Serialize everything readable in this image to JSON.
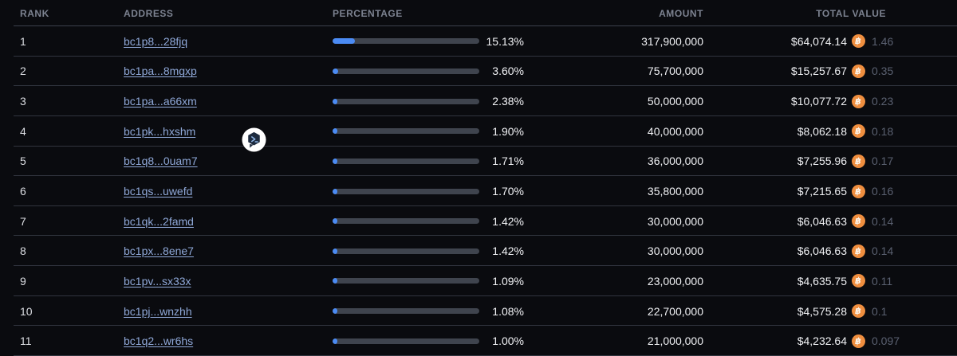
{
  "table": {
    "headers": {
      "rank": "RANK",
      "address": "ADDRESS",
      "percentage": "PERCENTAGE",
      "amount": "AMOUNT",
      "total_value": "TOTAL VALUE"
    },
    "rows": [
      {
        "rank": "1",
        "address": "bc1p8...28fjq",
        "percentage": "15.13%",
        "percentage_value": 15.13,
        "amount": "317,900,000",
        "usd": "$64,074.14",
        "btc": "1.46"
      },
      {
        "rank": "2",
        "address": "bc1pa...8mgxp",
        "percentage": "3.60%",
        "percentage_value": 3.6,
        "amount": "75,700,000",
        "usd": "$15,257.67",
        "btc": "0.35"
      },
      {
        "rank": "3",
        "address": "bc1pa...a66xm",
        "percentage": "2.38%",
        "percentage_value": 2.38,
        "amount": "50,000,000",
        "usd": "$10,077.72",
        "btc": "0.23"
      },
      {
        "rank": "4",
        "address": "bc1pk...hxshm",
        "percentage": "1.90%",
        "percentage_value": 1.9,
        "amount": "40,000,000",
        "usd": "$8,062.18",
        "btc": "0.18"
      },
      {
        "rank": "5",
        "address": "bc1q8...0uam7",
        "percentage": "1.71%",
        "percentage_value": 1.71,
        "amount": "36,000,000",
        "usd": "$7,255.96",
        "btc": "0.17"
      },
      {
        "rank": "6",
        "address": "bc1qs...uwefd",
        "percentage": "1.70%",
        "percentage_value": 1.7,
        "amount": "35,800,000",
        "usd": "$7,215.65",
        "btc": "0.16"
      },
      {
        "rank": "7",
        "address": "bc1qk...2famd",
        "percentage": "1.42%",
        "percentage_value": 1.42,
        "amount": "30,000,000",
        "usd": "$6,046.63",
        "btc": "0.14"
      },
      {
        "rank": "8",
        "address": "bc1px...8ene7",
        "percentage": "1.42%",
        "percentage_value": 1.42,
        "amount": "30,000,000",
        "usd": "$6,046.63",
        "btc": "0.14"
      },
      {
        "rank": "9",
        "address": "bc1pv...sx33x",
        "percentage": "1.09%",
        "percentage_value": 1.09,
        "amount": "23,000,000",
        "usd": "$4,635.75",
        "btc": "0.11"
      },
      {
        "rank": "10",
        "address": "bc1pj...wnzhh",
        "percentage": "1.08%",
        "percentage_value": 1.08,
        "amount": "22,700,000",
        "usd": "$4,575.28",
        "btc": "0.1"
      },
      {
        "rank": "11",
        "address": "bc1q2...wr6hs",
        "percentage": "1.00%",
        "percentage_value": 1.0,
        "amount": "21,000,000",
        "usd": "$4,232.64",
        "btc": "0.097"
      }
    ]
  },
  "icons": {
    "bitcoin_symbol": "฿",
    "overlay_badge": "hexagon-chat-arrow-badge"
  },
  "colors": {
    "background": "#0a0b0f",
    "bar_fill_blue": "#4b8bf4",
    "bar_track_gray": "#3f444e",
    "address_link_blue": "#8fa8d8",
    "bitcoin_orange": "#ef8e3f",
    "btc_value_gray": "#5a6070",
    "header_text_gray": "#7c8290"
  }
}
